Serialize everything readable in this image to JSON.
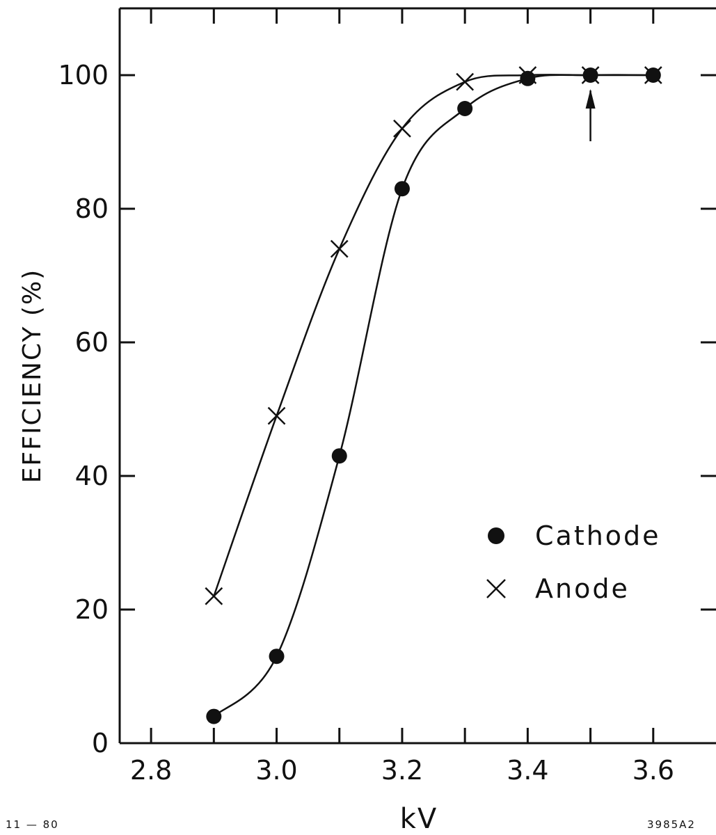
{
  "chart_data": {
    "type": "scatter",
    "xlabel": "kV",
    "ylabel": "EFFICIENCY (%)",
    "xlim": [
      2.75,
      3.7
    ],
    "ylim": [
      0,
      110
    ],
    "x_ticks": [
      "2.8",
      "3.0",
      "3.2",
      "3.4",
      "3.6"
    ],
    "y_ticks": [
      "0",
      "20",
      "40",
      "60",
      "80",
      "100"
    ],
    "grid": false,
    "legend_position": "lower-right",
    "series": [
      {
        "name": "Cathode",
        "marker": "filled-circle",
        "x": [
          2.9,
          3.0,
          3.1,
          3.2,
          3.3,
          3.4,
          3.5,
          3.6
        ],
        "y": [
          4,
          13,
          43,
          83,
          95,
          99.5,
          100,
          100
        ]
      },
      {
        "name": "Anode",
        "marker": "x",
        "x": [
          2.9,
          3.0,
          3.1,
          3.2,
          3.3,
          3.4,
          3.5,
          3.6
        ],
        "y": [
          22,
          49,
          74,
          92,
          99,
          100,
          100,
          100
        ]
      }
    ],
    "annotations": [
      {
        "type": "arrow",
        "x": 3.5,
        "y": 100,
        "direction": "up"
      }
    ]
  },
  "footer": {
    "left_note": "11 — 80",
    "right_note": "3985A2"
  },
  "colors": {
    "ink": "#111111",
    "background": "#ffffff"
  }
}
